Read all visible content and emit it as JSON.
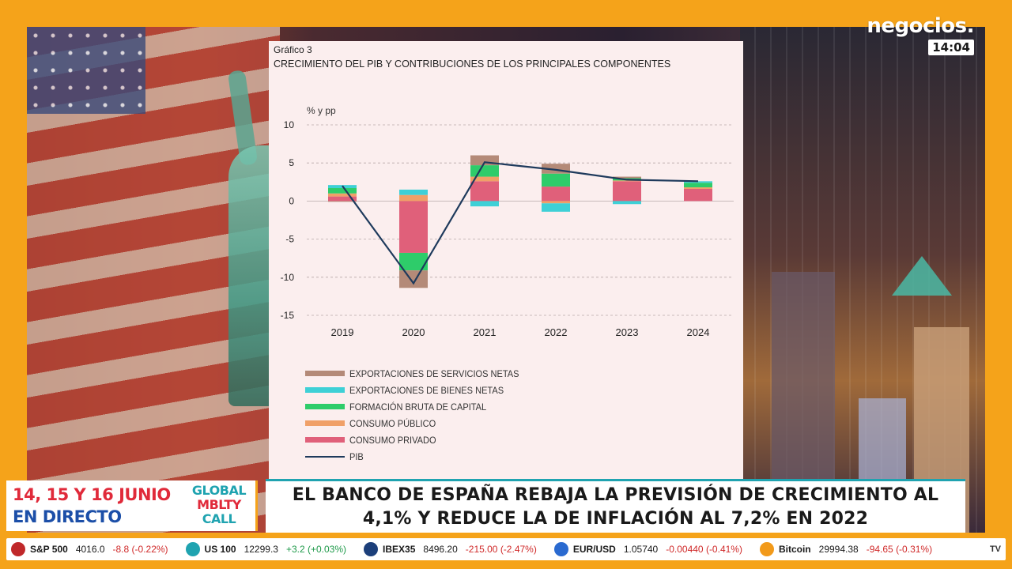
{
  "broadcast": {
    "logo": "negocios.",
    "time": "14:04"
  },
  "chart": {
    "kicker": "Gráfico 3",
    "title": "CRECIMIENTO DEL PIB Y CONTRIBUCIONES DE LOS PRINCIPALES COMPONENTES",
    "y_unit": "% y pp"
  },
  "chart_data": {
    "type": "bar",
    "title": "CRECIMIENTO DEL PIB Y CONTRIBUCIONES DE LOS PRINCIPALES COMPONENTES",
    "ylabel": "% y pp",
    "ylim": [
      -15,
      10
    ],
    "yticks": [
      10,
      5,
      0,
      -5,
      -10,
      -15
    ],
    "grid": true,
    "stacked": true,
    "categories": [
      "2019",
      "2020",
      "2021",
      "2022",
      "2023",
      "2024"
    ],
    "series": [
      {
        "name": "CONSUMO PRIVADO",
        "color": "#e0607a",
        "values": [
          0.6,
          -6.8,
          2.6,
          1.9,
          2.6,
          1.6
        ]
      },
      {
        "name": "CONSUMO PÚBLICO",
        "color": "#f0a068",
        "values": [
          0.4,
          0.8,
          0.6,
          -0.3,
          0.1,
          0.2
        ]
      },
      {
        "name": "FORMACIÓN BRUTA DE CAPITAL",
        "color": "#2ecc6a",
        "values": [
          0.7,
          -2.3,
          1.5,
          1.7,
          0.3,
          0.6
        ]
      },
      {
        "name": "EXPORTACIONES DE BIENES NETAS",
        "color": "#3ed0d6",
        "values": [
          0.4,
          0.7,
          -0.7,
          -1.1,
          -0.4,
          0.2
        ]
      },
      {
        "name": "EXPORTACIONES DE SERVICIOS NETAS",
        "color": "#b48a78",
        "values": [
          -0.1,
          -2.3,
          1.3,
          1.3,
          0.2,
          0.0
        ]
      }
    ],
    "line": {
      "name": "PIB",
      "color": "#1e3a5c",
      "values": [
        2.0,
        -10.8,
        5.1,
        4.1,
        2.8,
        2.6
      ]
    },
    "legend_position": "bottom-left"
  },
  "legend": [
    {
      "label": "EXPORTACIONES DE SERVICIOS NETAS",
      "color": "#b48a78",
      "kind": "bar"
    },
    {
      "label": "EXPORTACIONES DE BIENES NETAS",
      "color": "#3ed0d6",
      "kind": "bar"
    },
    {
      "label": "FORMACIÓN BRUTA DE CAPITAL",
      "color": "#2ecc6a",
      "kind": "bar"
    },
    {
      "label": "CONSUMO PÚBLICO",
      "color": "#f0a068",
      "kind": "bar"
    },
    {
      "label": "CONSUMO PRIVADO",
      "color": "#e0607a",
      "kind": "bar"
    },
    {
      "label": "PIB",
      "color": "#1e3a5c",
      "kind": "line"
    }
  ],
  "lower_third": {
    "date_line1": "14, 15 Y 16 JUNIO",
    "date_line2": "EN DIRECTO",
    "brand_line1": "GLOBAL",
    "brand_line2": "MBLTY",
    "brand_line3": "CALL",
    "headline_line1": "EL BANCO DE ESPAÑA REBAJA LA PREVISIÓN DE CRECIMIENTO AL",
    "headline_line2": "4,1% Y REDUCE LA DE INFLACIÓN AL 7,2% EN 2022"
  },
  "ticker": {
    "items": [
      {
        "icon": "sp500-icon",
        "icon_color": "#c0282a",
        "name": "S&P 500",
        "value": "4016.0",
        "change": "-8.8 (-0.22%)",
        "direction": "down"
      },
      {
        "icon": "us100-icon",
        "icon_color": "#1fa3b0",
        "name": "US 100",
        "value": "12299.3",
        "change": "+3.2 (+0.03%)",
        "direction": "up"
      },
      {
        "icon": "ibex35-icon",
        "icon_color": "#1c3f7a",
        "name": "IBEX35",
        "value": "8496.20",
        "change": "-215.00 (-2.47%)",
        "direction": "down"
      },
      {
        "icon": "eurusd-icon",
        "icon_color": "#2a6ad0",
        "name": "EUR/USD",
        "value": "1.05740",
        "change": "-0.00440 (-0.41%)",
        "direction": "down"
      },
      {
        "icon": "bitcoin-icon",
        "icon_color": "#f29a1a",
        "name": "Bitcoin",
        "value": "29994.38",
        "change": "-94.65 (-0.31%)",
        "direction": "down"
      }
    ],
    "end_label": "TV"
  }
}
